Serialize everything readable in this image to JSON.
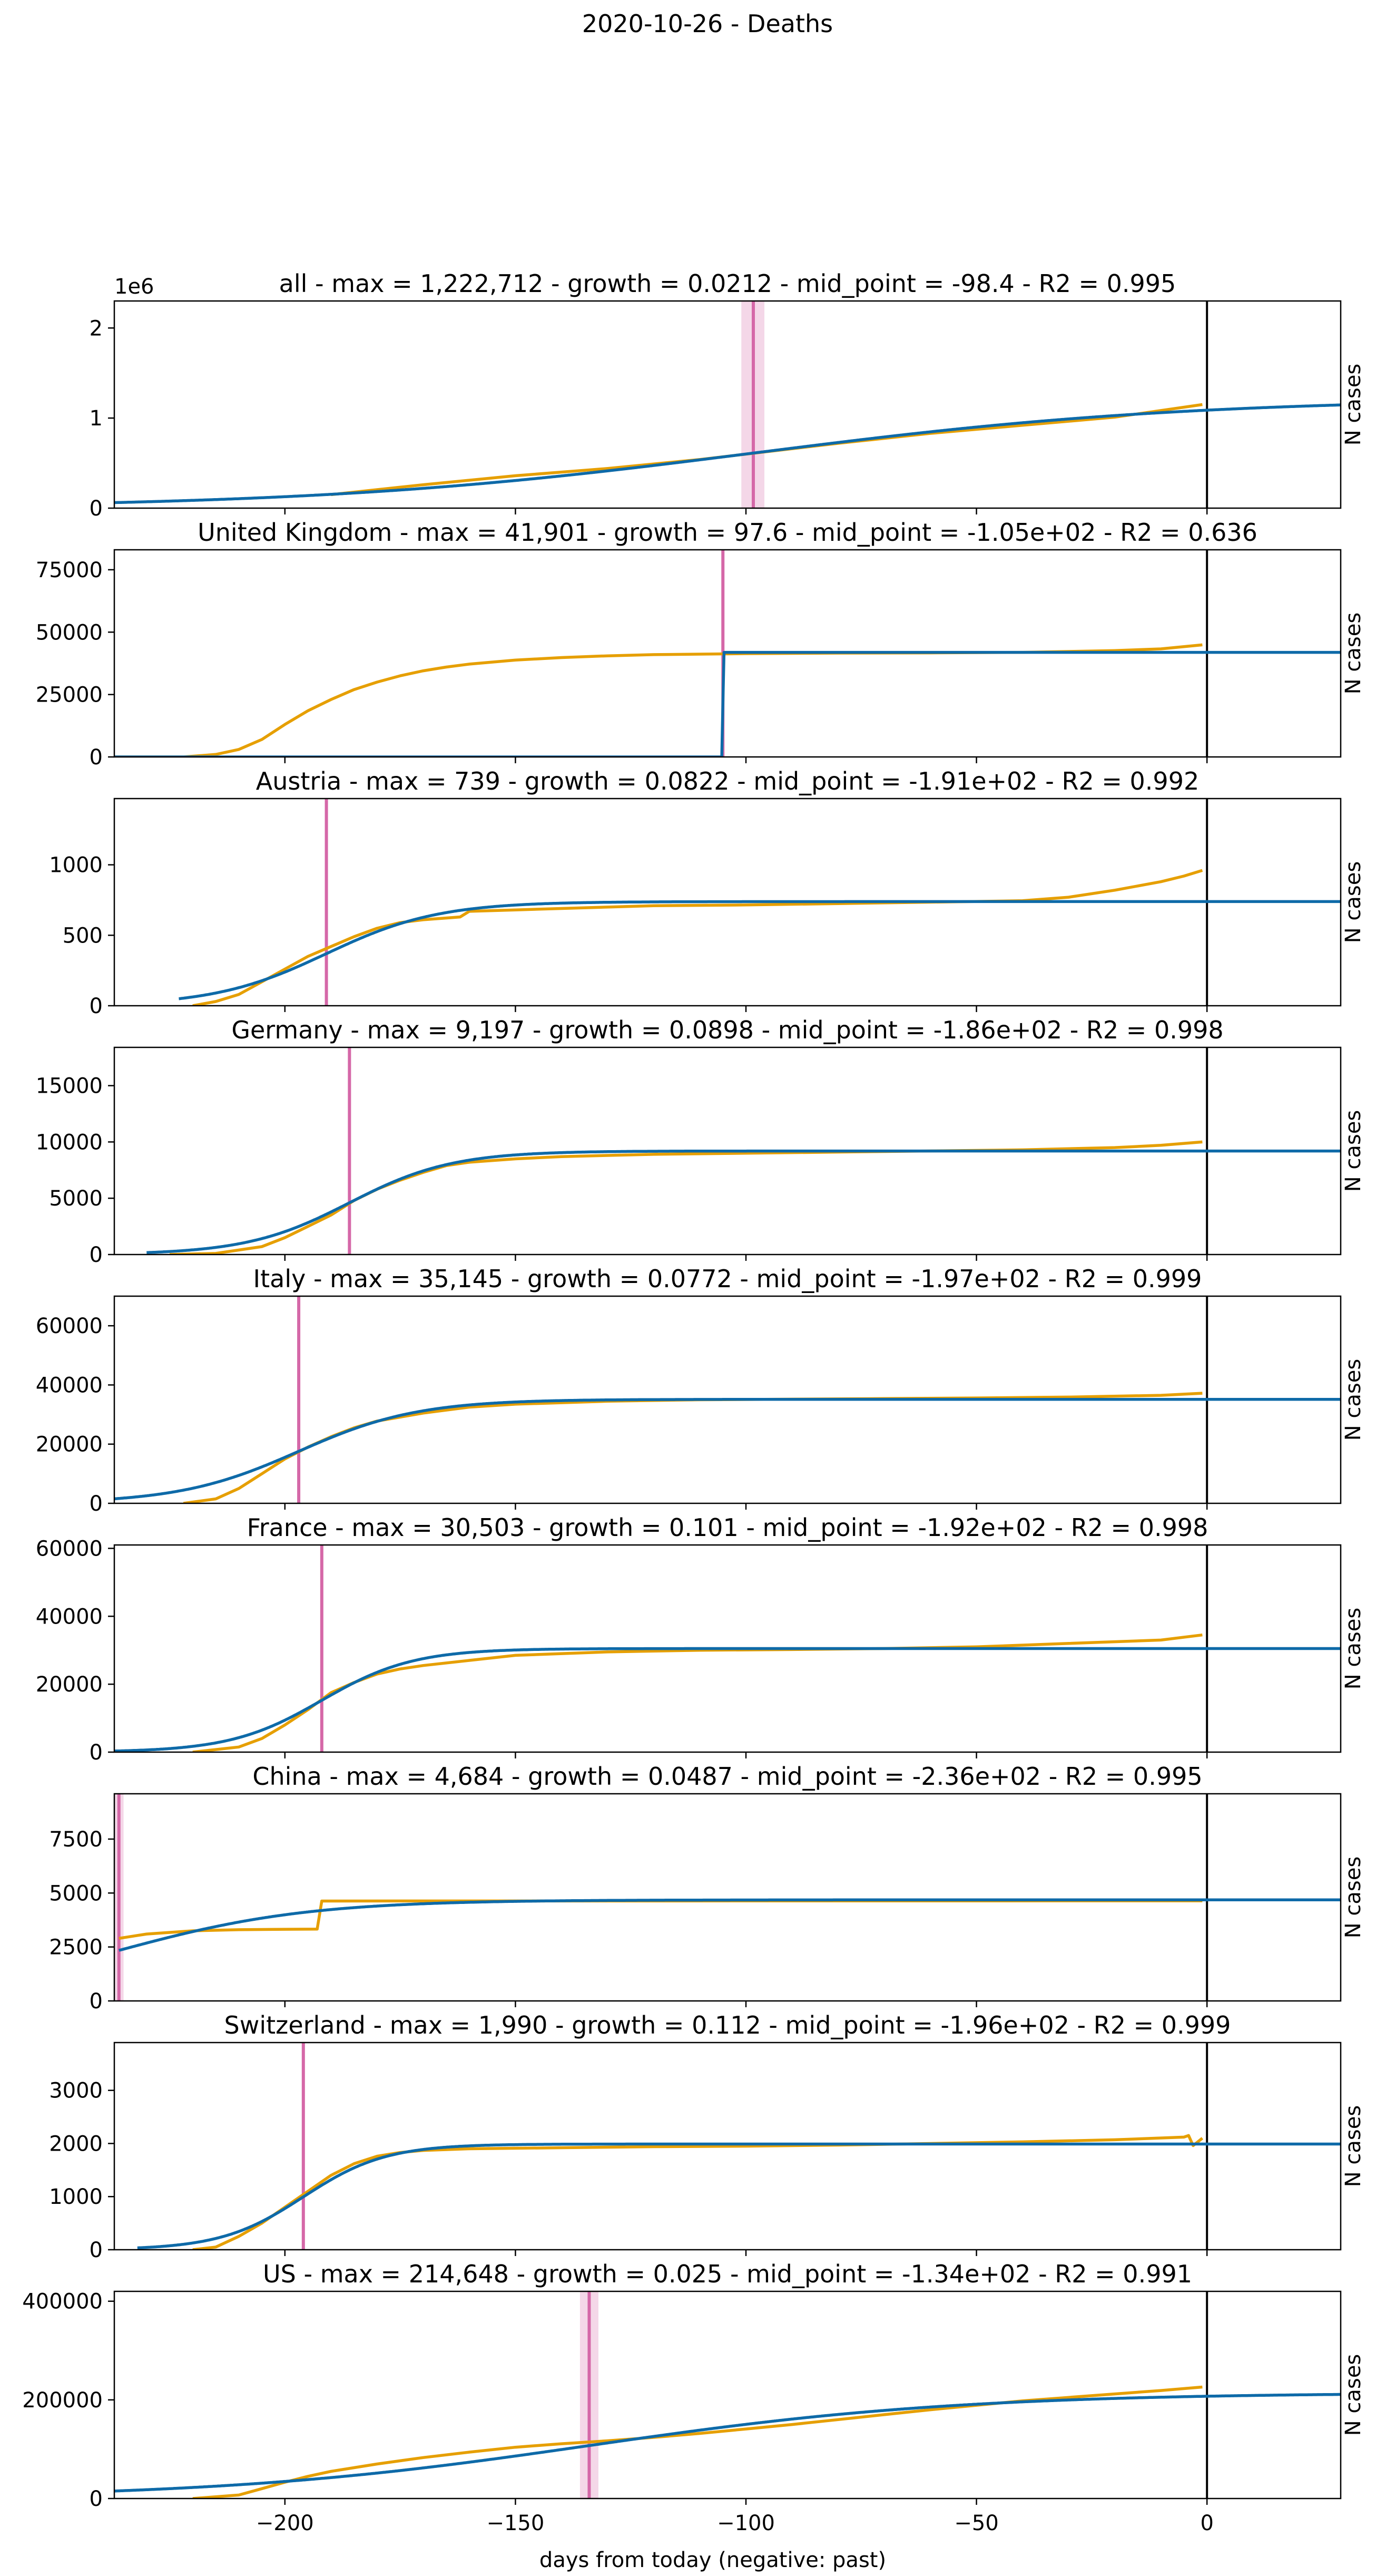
{
  "suptitle": "2020-10-26 - Deaths",
  "xlabel": "days from today (negative: past)",
  "xlim": [
    -237,
    29
  ],
  "xticks": [
    -200,
    -150,
    -100,
    -50,
    0
  ],
  "xtick_labels": [
    "−200",
    "−150",
    "−100",
    "−50",
    "0"
  ],
  "today_line_x": 0,
  "colors": {
    "fit": "#0e6aa8",
    "data": "#e69f00",
    "midpoint": "#d568a8",
    "band": "#f0c6de",
    "today": "#000000"
  },
  "chart_data": [
    {
      "type": "line",
      "title": "all - max = 1,222,712 - growth = 0.0212 - mid_point = -98.4 - R2 = 0.995",
      "ylabel": "N cases",
      "ylim": [
        0,
        2300000
      ],
      "yticks": [
        0,
        1000000,
        2000000
      ],
      "ytick_labels": [
        "0",
        "1",
        "2"
      ],
      "offset_label": "1e6",
      "midpoint": -98.4,
      "midpoint_band": [
        -101,
        -96
      ],
      "fit": {
        "type": "logistic",
        "max": 1222712,
        "growth": 0.0212,
        "mid": -98.4,
        "x_start": -237
      },
      "series": [
        {
          "points": [
            [
              -190,
              150000
            ],
            [
              -170,
              260000
            ],
            [
              -150,
              360000
            ],
            [
              -130,
              440000
            ],
            [
              -110,
              540000
            ],
            [
              -100,
              600000
            ],
            [
              -80,
              720000
            ],
            [
              -60,
              830000
            ],
            [
              -40,
              920000
            ],
            [
              -20,
              1010000
            ],
            [
              -1,
              1150000
            ]
          ]
        }
      ]
    },
    {
      "type": "line",
      "title": "United Kingdom - max = 41,901 - growth = 97.6 - mid_point = -1.05e+02 - R2 = 0.636",
      "ylabel": "N cases",
      "ylim": [
        0,
        83000
      ],
      "yticks": [
        0,
        25000,
        50000,
        75000
      ],
      "ytick_labels": [
        "0",
        "25000",
        "50000",
        "75000"
      ],
      "midpoint": -105,
      "fit": {
        "type": "logistic",
        "max": 41901,
        "growth": 97.6,
        "mid": -105,
        "x_start": -237
      },
      "series": [
        {
          "points": [
            [
              -237,
              0
            ],
            [
              -222,
              0
            ],
            [
              -215,
              1000
            ],
            [
              -210,
              3000
            ],
            [
              -205,
              7000
            ],
            [
              -200,
              13000
            ],
            [
              -195,
              18500
            ],
            [
              -190,
              23000
            ],
            [
              -185,
              27000
            ],
            [
              -180,
              30000
            ],
            [
              -175,
              32500
            ],
            [
              -170,
              34500
            ],
            [
              -165,
              36000
            ],
            [
              -160,
              37200
            ],
            [
              -150,
              38800
            ],
            [
              -140,
              39800
            ],
            [
              -130,
              40500
            ],
            [
              -120,
              41000
            ],
            [
              -100,
              41400
            ],
            [
              -80,
              41600
            ],
            [
              -60,
              41700
            ],
            [
              -40,
              41900
            ],
            [
              -20,
              42600
            ],
            [
              -10,
              43300
            ],
            [
              -1,
              44900
            ]
          ]
        }
      ]
    },
    {
      "type": "line",
      "title": "Austria - max = 739 - growth = 0.0822 - mid_point = -1.91e+02 - R2 = 0.992",
      "ylabel": "N cases",
      "ylim": [
        0,
        1470
      ],
      "yticks": [
        0,
        500,
        1000
      ],
      "ytick_labels": [
        "0",
        "500",
        "1000"
      ],
      "midpoint": -191,
      "fit": {
        "type": "logistic",
        "max": 739,
        "growth": 0.0822,
        "mid": -191,
        "x_start": -223
      },
      "series": [
        {
          "points": [
            [
              -220,
              0
            ],
            [
              -215,
              30
            ],
            [
              -210,
              80
            ],
            [
              -205,
              170
            ],
            [
              -200,
              260
            ],
            [
              -195,
              350
            ],
            [
              -190,
              420
            ],
            [
              -185,
              490
            ],
            [
              -180,
              550
            ],
            [
              -175,
              590
            ],
            [
              -170,
              610
            ],
            [
              -162,
              630
            ],
            [
              -160,
              670
            ],
            [
              -150,
              680
            ],
            [
              -140,
              690
            ],
            [
              -120,
              710
            ],
            [
              -100,
              715
            ],
            [
              -80,
              725
            ],
            [
              -60,
              735
            ],
            [
              -40,
              745
            ],
            [
              -30,
              770
            ],
            [
              -20,
              820
            ],
            [
              -10,
              880
            ],
            [
              -5,
              920
            ],
            [
              -1,
              960
            ]
          ]
        }
      ]
    },
    {
      "type": "line",
      "title": "Germany - max = 9,197 - growth = 0.0898 - mid_point = -1.86e+02 - R2 = 0.998",
      "ylabel": "N cases",
      "ylim": [
        0,
        18400
      ],
      "yticks": [
        0,
        5000,
        10000,
        15000
      ],
      "ytick_labels": [
        "0",
        "5000",
        "10000",
        "15000"
      ],
      "midpoint": -186,
      "fit": {
        "type": "logistic",
        "max": 9197,
        "growth": 0.0898,
        "mid": -186,
        "x_start": -230
      },
      "series": [
        {
          "points": [
            [
              -225,
              0
            ],
            [
              -215,
              100
            ],
            [
              -205,
              700
            ],
            [
              -200,
              1500
            ],
            [
              -195,
              2500
            ],
            [
              -190,
              3500
            ],
            [
              -185,
              4800
            ],
            [
              -180,
              5800
            ],
            [
              -175,
              6600
            ],
            [
              -170,
              7300
            ],
            [
              -165,
              7900
            ],
            [
              -160,
              8200
            ],
            [
              -150,
              8500
            ],
            [
              -140,
              8700
            ],
            [
              -120,
              8900
            ],
            [
              -100,
              9000
            ],
            [
              -80,
              9100
            ],
            [
              -60,
              9200
            ],
            [
              -40,
              9300
            ],
            [
              -20,
              9500
            ],
            [
              -10,
              9700
            ],
            [
              -1,
              10000
            ]
          ]
        }
      ]
    },
    {
      "type": "line",
      "title": "Italy - max = 35,145 - growth = 0.0772 - mid_point = -1.97e+02 - R2 = 0.999",
      "ylabel": "N cases",
      "ylim": [
        0,
        70000
      ],
      "yticks": [
        0,
        20000,
        40000,
        60000
      ],
      "ytick_labels": [
        "0",
        "20000",
        "40000",
        "60000"
      ],
      "midpoint": -197,
      "fit": {
        "type": "logistic",
        "max": 35145,
        "growth": 0.0772,
        "mid": -197,
        "x_start": -237
      },
      "series": [
        {
          "points": [
            [
              -222,
              0
            ],
            [
              -215,
              1500
            ],
            [
              -210,
              5000
            ],
            [
              -205,
              10000
            ],
            [
              -200,
              15000
            ],
            [
              -195,
              19000
            ],
            [
              -190,
              22500
            ],
            [
              -185,
              25500
            ],
            [
              -180,
              27800
            ],
            [
              -170,
              30500
            ],
            [
              -160,
              32500
            ],
            [
              -150,
              33500
            ],
            [
              -130,
              34500
            ],
            [
              -110,
              35000
            ],
            [
              -90,
              35200
            ],
            [
              -70,
              35400
            ],
            [
              -50,
              35600
            ],
            [
              -30,
              35900
            ],
            [
              -10,
              36500
            ],
            [
              -1,
              37200
            ]
          ]
        }
      ]
    },
    {
      "type": "line",
      "title": "France - max = 30,503 - growth = 0.101 - mid_point = -1.92e+02 - R2 = 0.998",
      "ylabel": "N cases",
      "ylim": [
        0,
        61000
      ],
      "yticks": [
        0,
        20000,
        40000,
        60000
      ],
      "ytick_labels": [
        "0",
        "20000",
        "40000",
        "60000"
      ],
      "midpoint": -192,
      "fit": {
        "type": "logistic",
        "max": 30503,
        "growth": 0.101,
        "mid": -192,
        "x_start": -237
      },
      "series": [
        {
          "points": [
            [
              -220,
              0
            ],
            [
              -210,
              1500
            ],
            [
              -205,
              4000
            ],
            [
              -200,
              8000
            ],
            [
              -195,
              12500
            ],
            [
              -190,
              17500
            ],
            [
              -185,
              20500
            ],
            [
              -180,
              23000
            ],
            [
              -175,
              24500
            ],
            [
              -170,
              25500
            ],
            [
              -160,
              27000
            ],
            [
              -150,
              28500
            ],
            [
              -130,
              29500
            ],
            [
              -110,
              30000
            ],
            [
              -90,
              30200
            ],
            [
              -70,
              30500
            ],
            [
              -50,
              31000
            ],
            [
              -30,
              32000
            ],
            [
              -10,
              33000
            ],
            [
              -1,
              34500
            ]
          ]
        }
      ]
    },
    {
      "type": "line",
      "title": "China - max = 4,684 - growth = 0.0487 - mid_point = -2.36e+02 - R2 = 0.995",
      "ylabel": "N cases",
      "ylim": [
        0,
        9600
      ],
      "yticks": [
        0,
        2500,
        5000,
        7500
      ],
      "ytick_labels": [
        "0",
        "2500",
        "5000",
        "7500"
      ],
      "midpoint": -236,
      "midpoint_band": [
        -237,
        -235
      ],
      "fit": {
        "type": "logistic",
        "max": 4684,
        "growth": 0.0487,
        "mid": -236,
        "x_start": -236
      },
      "series": [
        {
          "points": [
            [
              -236,
              2900
            ],
            [
              -230,
              3100
            ],
            [
              -220,
              3250
            ],
            [
              -210,
              3300
            ],
            [
              -200,
              3320
            ],
            [
              -193,
              3330
            ],
            [
              -192,
              4630
            ],
            [
              -170,
              4632
            ],
            [
              -100,
              4634
            ],
            [
              -50,
              4636
            ],
            [
              -1,
              4640
            ]
          ]
        }
      ]
    },
    {
      "type": "line",
      "title": "Switzerland - max = 1,990 - growth = 0.112 - mid_point = -1.96e+02 - R2 = 0.999",
      "ylabel": "N cases",
      "ylim": [
        0,
        3900
      ],
      "yticks": [
        0,
        1000,
        2000,
        3000
      ],
      "ytick_labels": [
        "0",
        "1000",
        "2000",
        "3000"
      ],
      "midpoint": -196,
      "fit": {
        "type": "logistic",
        "max": 1990,
        "growth": 0.112,
        "mid": -196,
        "x_start": -232
      },
      "series": [
        {
          "points": [
            [
              -220,
              0
            ],
            [
              -215,
              50
            ],
            [
              -210,
              250
            ],
            [
              -205,
              500
            ],
            [
              -200,
              800
            ],
            [
              -195,
              1100
            ],
            [
              -190,
              1400
            ],
            [
              -185,
              1620
            ],
            [
              -180,
              1760
            ],
            [
              -175,
              1830
            ],
            [
              -170,
              1870
            ],
            [
              -160,
              1900
            ],
            [
              -140,
              1920
            ],
            [
              -120,
              1940
            ],
            [
              -100,
              1950
            ],
            [
              -80,
              1970
            ],
            [
              -60,
              2000
            ],
            [
              -40,
              2030
            ],
            [
              -20,
              2070
            ],
            [
              -5,
              2120
            ],
            [
              -4,
              2150
            ],
            [
              -3,
              1960
            ],
            [
              -1,
              2100
            ]
          ]
        }
      ]
    },
    {
      "type": "line",
      "title": "US - max = 214,648 - growth = 0.025 - mid_point = -1.34e+02 - R2 = 0.991",
      "ylabel": "N cases",
      "ylim": [
        0,
        420000
      ],
      "yticks": [
        0,
        200000,
        400000
      ],
      "ytick_labels": [
        "0",
        "200000",
        "400000"
      ],
      "midpoint": -134,
      "midpoint_band": [
        -136,
        -132
      ],
      "fit": {
        "type": "logistic",
        "max": 214648,
        "growth": 0.025,
        "mid": -134,
        "x_start": -237
      },
      "series": [
        {
          "points": [
            [
              -220,
              0
            ],
            [
              -210,
              7000
            ],
            [
              -205,
              20000
            ],
            [
              -200,
              33000
            ],
            [
              -195,
              45000
            ],
            [
              -190,
              55000
            ],
            [
              -180,
              70000
            ],
            [
              -170,
              83000
            ],
            [
              -160,
              94000
            ],
            [
              -150,
              104000
            ],
            [
              -140,
              111000
            ],
            [
              -130,
              117000
            ],
            [
              -120,
              124000
            ],
            [
              -110,
              132000
            ],
            [
              -100,
              141000
            ],
            [
              -90,
              150000
            ],
            [
              -80,
              160000
            ],
            [
              -70,
              170000
            ],
            [
              -60,
              180000
            ],
            [
              -50,
              189000
            ],
            [
              -40,
              198000
            ],
            [
              -30,
              205000
            ],
            [
              -20,
              212000
            ],
            [
              -10,
              219000
            ],
            [
              -1,
              226000
            ]
          ]
        }
      ]
    }
  ]
}
